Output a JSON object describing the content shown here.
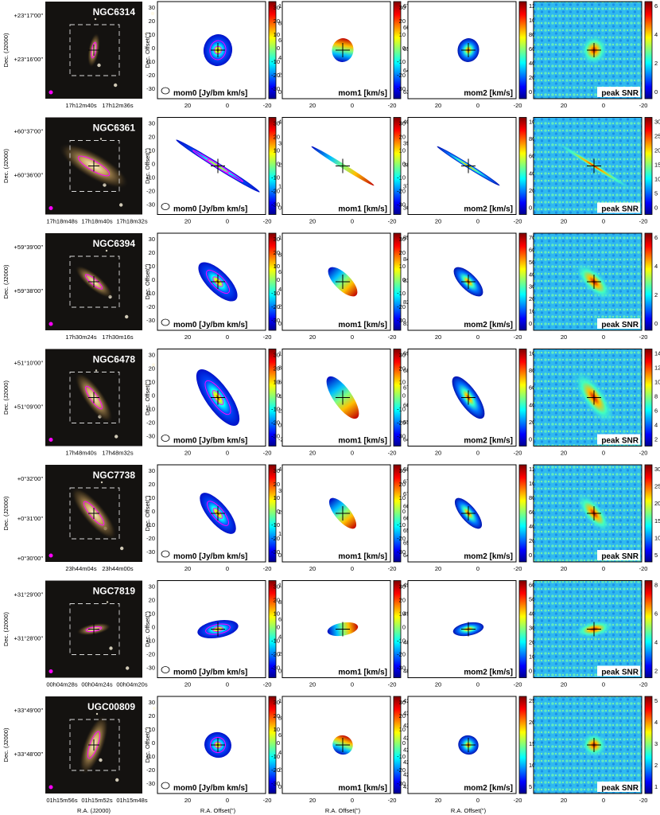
{
  "panel_titles": {
    "mom0": "mom0 [Jy/bm km/s]",
    "mom1": "mom1 [km/s]",
    "mom2": "mom2 [km/s]",
    "snr": "peak SNR"
  },
  "axes": {
    "y_label": "Dec. Offset(\")",
    "x_label": "R.A. Offset(\")",
    "optical_y_label": "Dec. (J2000)",
    "optical_x_label": "R.A. (J2000)",
    "y_ticks": [
      "30",
      "20",
      "10",
      "0",
      "-10",
      "-20",
      "-30"
    ],
    "x_ticks": [
      "20",
      "0",
      "-20"
    ]
  },
  "colors": {
    "colormap": "jet",
    "contour": "#ff00ff",
    "optical_bg": "#141210",
    "box": "#d8d8d8"
  },
  "rows": [
    {
      "galaxy": "NGC6314",
      "dec_ticks": [
        "+23°17′00″",
        "+23°16′00″"
      ],
      "ra_ticks": [
        "17h12m40s",
        "17h12m36s"
      ],
      "mom0_scale": [
        "10",
        "8",
        "6",
        "4",
        "2",
        "0"
      ],
      "mom1_scale": [
        "6700",
        "6600",
        "6500",
        "6400",
        "6300"
      ],
      "mom2_scale": [
        "120",
        "100",
        "80",
        "60",
        "40",
        "20",
        "0"
      ],
      "snr_scale": [
        "6",
        "4",
        "2",
        "0"
      ]
    },
    {
      "galaxy": "NGC6361",
      "dec_ticks": [
        "+60°37′00″",
        "+60°36′00″"
      ],
      "ra_ticks": [
        "17h18m48s",
        "17h18m40s",
        "17h18m32s"
      ],
      "mom0_scale": [
        "40",
        "30",
        "20",
        "10",
        "0"
      ],
      "mom1_scale": [
        "4000",
        "3900",
        "3800",
        "3700",
        "3600"
      ],
      "mom2_scale": [
        "100",
        "80",
        "60",
        "40",
        "20",
        "0"
      ],
      "snr_scale": [
        "30",
        "25",
        "20",
        "15",
        "10",
        "5",
        "0"
      ]
    },
    {
      "galaxy": "NGC6394",
      "dec_ticks": [
        "+59°39′00″",
        "+59°38′00″"
      ],
      "ra_ticks": [
        "17h30m24s",
        "17h30m16s"
      ],
      "mom0_scale": [
        "10",
        "8",
        "6",
        "4",
        "2",
        "0"
      ],
      "mom1_scale": [
        "8500",
        "8400",
        "8300",
        "8200",
        "8100"
      ],
      "mom2_scale": [
        "70",
        "60",
        "50",
        "40",
        "30",
        "20",
        "10",
        "0"
      ],
      "snr_scale": [
        "6",
        "4",
        "2",
        "0"
      ]
    },
    {
      "galaxy": "NGC6478",
      "dec_ticks": [
        "+51°10′00″",
        "+51°09′00″"
      ],
      "ra_ticks": [
        "17h48m40s",
        "17h48m32s"
      ],
      "mom0_scale": [
        "10",
        "8",
        "6",
        "4",
        "2",
        "0",
        "-2"
      ],
      "mom1_scale": [
        "6900",
        "6800",
        "6700",
        "6600",
        "6500",
        "6400"
      ],
      "mom2_scale": [
        "100",
        "80",
        "60",
        "40",
        "20",
        "0"
      ],
      "snr_scale": [
        "14",
        "12",
        "10",
        "8",
        "6",
        "4",
        "2"
      ]
    },
    {
      "galaxy": "NGC7738",
      "dec_ticks": [
        "+0°32′00″",
        "+0°31′00″",
        "+0°30′00″"
      ],
      "ra_ticks": [
        "23h44m04s",
        "23h44m00s"
      ],
      "mom0_scale": [
        "40",
        "30",
        "20",
        "10",
        "0"
      ],
      "mom1_scale": [
        "6800",
        "6750",
        "6700",
        "6650",
        "6600",
        "6550",
        "6500",
        "6450"
      ],
      "mom2_scale": [
        "120",
        "100",
        "80",
        "60",
        "40",
        "20",
        "0"
      ],
      "snr_scale": [
        "30",
        "25",
        "20",
        "15",
        "10",
        "5"
      ]
    },
    {
      "galaxy": "NGC7819",
      "dec_ticks": [
        "+31°29′00″",
        "+31°28′00″"
      ],
      "ra_ticks": [
        "00h04m28s",
        "00h04m24s",
        "00h04m20s"
      ],
      "mom0_scale": [
        "10",
        "8",
        "6",
        "4",
        "2",
        "0"
      ],
      "mom1_scale": [
        "4950",
        "4900",
        "4850",
        "4800"
      ],
      "mom2_scale": [
        "60",
        "50",
        "40",
        "30",
        "20",
        "10",
        "0"
      ],
      "snr_scale": [
        "8",
        "6",
        "4",
        "2"
      ]
    },
    {
      "galaxy": "UGC00809",
      "dec_ticks": [
        "+33°49′00″",
        "+33°48′00″"
      ],
      "ra_ticks": [
        "01h15m56s",
        "01h15m52s",
        "01h15m48s"
      ],
      "mom0_scale": [
        "10",
        "8",
        "6",
        "4",
        "2",
        "0"
      ],
      "mom1_scale": [
        "4260",
        "4250",
        "4240",
        "4230",
        "4220",
        "4210",
        "4200",
        "4190"
      ],
      "mom2_scale": [
        "25",
        "20",
        "15",
        "10",
        "5"
      ],
      "snr_scale": [
        "5",
        "4",
        "3",
        "2",
        "1"
      ]
    }
  ]
}
